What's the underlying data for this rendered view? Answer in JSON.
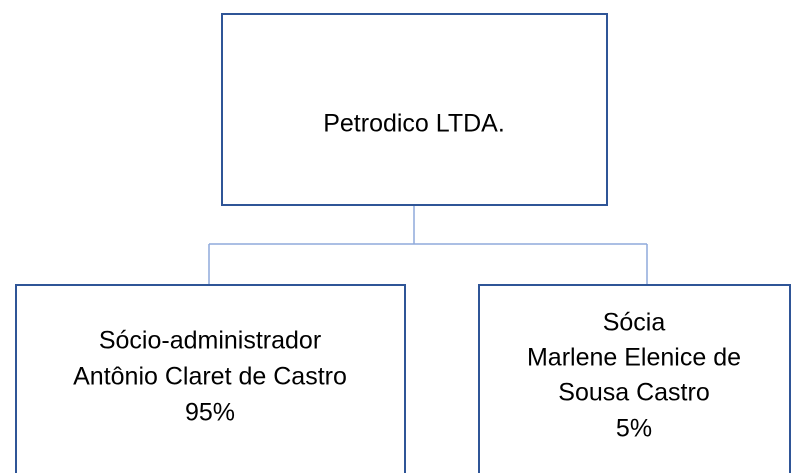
{
  "nodes": [
    {
      "lines": [
        "Petrodico LTDA."
      ]
    },
    {
      "lines": [
        "Sócio-administrador",
        "Antônio Claret de Castro",
        "95%"
      ]
    },
    {
      "lines": [
        "Sócia",
        "Marlene Elenice de",
        "Sousa Castro",
        "5%"
      ]
    }
  ]
}
